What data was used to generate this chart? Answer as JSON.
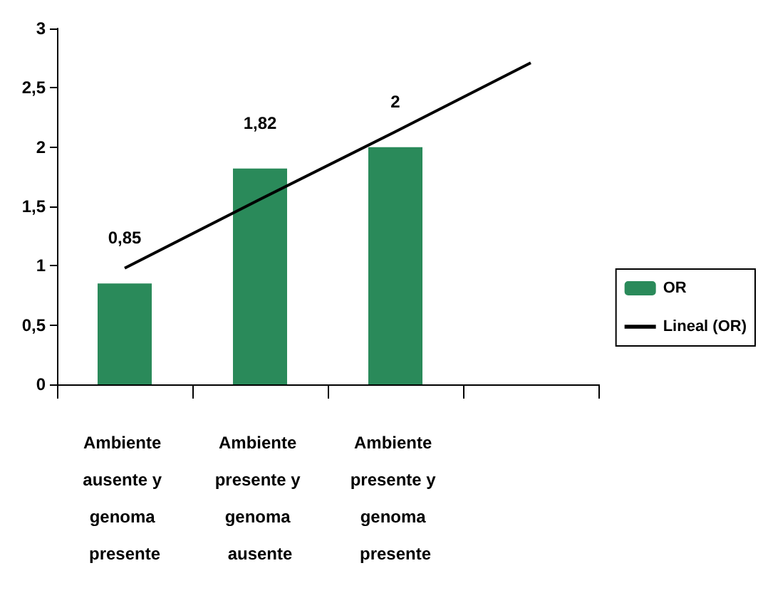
{
  "chart_data": {
    "type": "bar",
    "categories": [
      "Ambiente ausente y genoma presente",
      "Ambiente presente y genoma ausente",
      "Ambiente presente y genoma presente",
      null
    ],
    "series": [
      {
        "name": "OR",
        "color": "#2a8a5a",
        "values": [
          0.85,
          1.82,
          2,
          null
        ],
        "value_labels": [
          "0,85",
          "1,82",
          "2",
          null
        ]
      },
      {
        "name": "Lineal (OR)",
        "type": "line",
        "color": "#000000",
        "values": [
          0.98,
          1.56,
          2.13,
          2.71
        ]
      }
    ],
    "ylim": [
      0,
      3
    ],
    "yticks": [
      0,
      {
        "value": 0.5,
        "label": "0,5"
      },
      1,
      {
        "value": 1.5,
        "label": "1,5"
      },
      2,
      {
        "value": 2.5,
        "label": "2,5"
      },
      3
    ],
    "grid": false,
    "legend": "right",
    "marker": "none",
    "line_style": "solid"
  }
}
